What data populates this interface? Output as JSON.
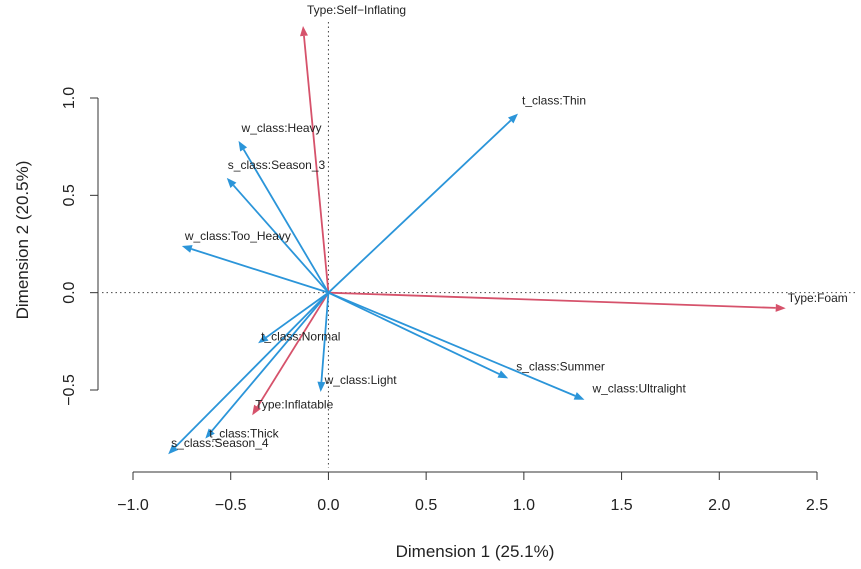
{
  "chart_data": {
    "type": "biplot-arrows",
    "xlabel": "Dimension 1 (25.1%)",
    "ylabel": "Dimension 2 (20.5%)",
    "xlim": [
      -1.0,
      2.5
    ],
    "ylim": [
      -0.5,
      1.0
    ],
    "xticks": [
      -1.0,
      -0.5,
      0.0,
      0.5,
      1.0,
      1.5,
      2.0,
      2.5
    ],
    "yticks": [
      -0.5,
      0.0,
      0.5,
      1.0
    ],
    "xtick_labels": [
      "−1.0",
      "−0.5",
      "0.0",
      "0.5",
      "1.0",
      "1.5",
      "2.0",
      "2.5"
    ],
    "ytick_labels": [
      "−0.5",
      "0.0",
      "0.5",
      "1.0"
    ],
    "reference_lines": {
      "x": 0,
      "y": 0,
      "style": "dotted"
    },
    "colors": {
      "type_group": "#d6526b",
      "class_group": "#2b95d9"
    },
    "arrows": [
      {
        "label": "Type:Self−Inflating",
        "x": -0.13,
        "y": 1.37,
        "group": "type_group"
      },
      {
        "label": "Type:Foam",
        "x": 2.34,
        "y": -0.08,
        "group": "type_group"
      },
      {
        "label": "Type:Inflatable",
        "x": -0.39,
        "y": -0.63,
        "group": "type_group"
      },
      {
        "label": "t_class:Thin",
        "x": 0.97,
        "y": 0.92,
        "group": "class_group"
      },
      {
        "label": "w_class:Heavy",
        "x": -0.46,
        "y": 0.78,
        "group": "class_group"
      },
      {
        "label": "s_class:Season_3",
        "x": -0.52,
        "y": 0.59,
        "group": "class_group"
      },
      {
        "label": "w_class:Too_Heavy",
        "x": -0.75,
        "y": 0.24,
        "group": "class_group"
      },
      {
        "label": "t_class:Normal",
        "x": -0.36,
        "y": -0.26,
        "group": "class_group"
      },
      {
        "label": "w_class:Light",
        "x": -0.04,
        "y": -0.51,
        "group": "class_group"
      },
      {
        "label": "s_class:Summer",
        "x": 0.92,
        "y": -0.44,
        "group": "class_group"
      },
      {
        "label": "w_class:Ultralight",
        "x": 1.31,
        "y": -0.55,
        "group": "class_group"
      },
      {
        "label": "t_class:Thick",
        "x": -0.63,
        "y": -0.75,
        "group": "class_group"
      },
      {
        "label": "s_class:Season_4",
        "x": -0.82,
        "y": -0.83,
        "group": "class_group"
      }
    ]
  }
}
